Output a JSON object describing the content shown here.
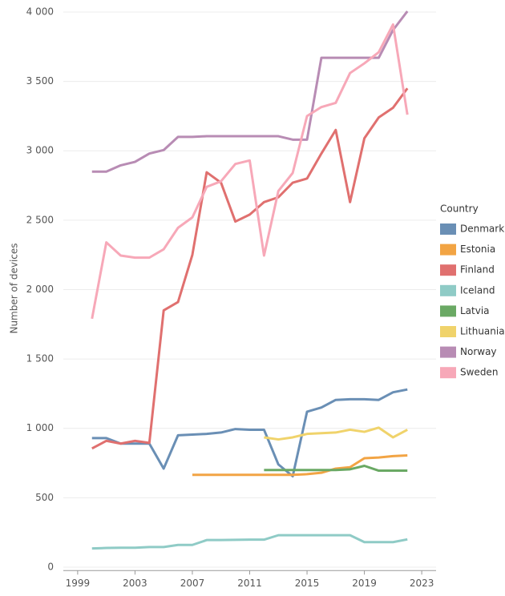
{
  "chart_data": {
    "type": "line",
    "y_label": "Number of devices",
    "legend_title": "Country",
    "x": [
      2000,
      2001,
      2002,
      2003,
      2004,
      2005,
      2006,
      2007,
      2008,
      2009,
      2010,
      2011,
      2012,
      2013,
      2014,
      2015,
      2016,
      2017,
      2018,
      2019,
      2020,
      2021,
      2022
    ],
    "xlim": [
      1998,
      2024
    ],
    "xticks": [
      1999,
      2003,
      2007,
      2011,
      2015,
      2019,
      2023
    ],
    "ylim": [
      -25,
      4050
    ],
    "yticks": [
      0,
      500,
      {
        "value": 1000,
        "label": "1 000"
      },
      {
        "value": 1500,
        "label": "1 500"
      },
      {
        "value": 2000,
        "label": "2 000"
      },
      {
        "value": 2500,
        "label": "2 500"
      },
      {
        "value": 3000,
        "label": "3 000"
      },
      {
        "value": 3500,
        "label": "3 500"
      },
      {
        "value": 4000,
        "label": "4 000"
      }
    ],
    "grid": true,
    "legend": "right",
    "series": [
      {
        "name": "Denmark",
        "color": "#6a8fb5",
        "values": [
          930,
          930,
          890,
          890,
          890,
          710,
          950,
          955,
          960,
          970,
          995,
          990,
          990,
          740,
          655,
          1120,
          1150,
          1205,
          1210,
          1210,
          1205,
          1260,
          1280
        ]
      },
      {
        "name": "Estonia",
        "color": "#f2a444",
        "values": [
          null,
          null,
          null,
          null,
          null,
          null,
          null,
          665,
          665,
          665,
          665,
          665,
          665,
          665,
          665,
          670,
          680,
          710,
          720,
          785,
          790,
          800,
          805
        ]
      },
      {
        "name": "Finland",
        "color": "#e0706f",
        "values": [
          855,
          910,
          890,
          910,
          895,
          1850,
          1910,
          2250,
          2845,
          2770,
          2490,
          2540,
          2630,
          2665,
          2770,
          2800,
          2980,
          3150,
          2630,
          3090,
          3240,
          3310,
          3450
        ]
      },
      {
        "name": "Iceland",
        "color": "#8fcbc6",
        "values": [
          135,
          138,
          140,
          140,
          145,
          145,
          160,
          160,
          195,
          195,
          197,
          198,
          198,
          230,
          230,
          230,
          230,
          230,
          230,
          180,
          180,
          180,
          200
        ]
      },
      {
        "name": "Latvia",
        "color": "#6aa964",
        "values": [
          null,
          null,
          null,
          null,
          null,
          null,
          null,
          null,
          null,
          null,
          null,
          null,
          700,
          700,
          700,
          700,
          700,
          700,
          705,
          730,
          695,
          695,
          695
        ]
      },
      {
        "name": "Lithuania",
        "color": "#f0d36b",
        "values": [
          null,
          null,
          null,
          null,
          null,
          null,
          null,
          null,
          null,
          null,
          null,
          null,
          935,
          920,
          935,
          960,
          965,
          970,
          990,
          975,
          1005,
          935,
          990
        ]
      },
      {
        "name": "Norway",
        "color": "#b88cb4",
        "values": [
          2850,
          2850,
          2895,
          2920,
          2980,
          3005,
          3100,
          3100,
          3105,
          3105,
          3105,
          3105,
          3105,
          3105,
          3080,
          3080,
          3670,
          3670,
          3670,
          3670,
          3670,
          3870,
          4005
        ]
      },
      {
        "name": "Sweden",
        "color": "#f7a8b8",
        "values": [
          1790,
          2340,
          2245,
          2230,
          2230,
          2290,
          2445,
          2520,
          2740,
          2780,
          2905,
          2930,
          2245,
          2710,
          2840,
          3250,
          3315,
          3345,
          3560,
          3630,
          3710,
          3910,
          3260
        ]
      }
    ]
  }
}
